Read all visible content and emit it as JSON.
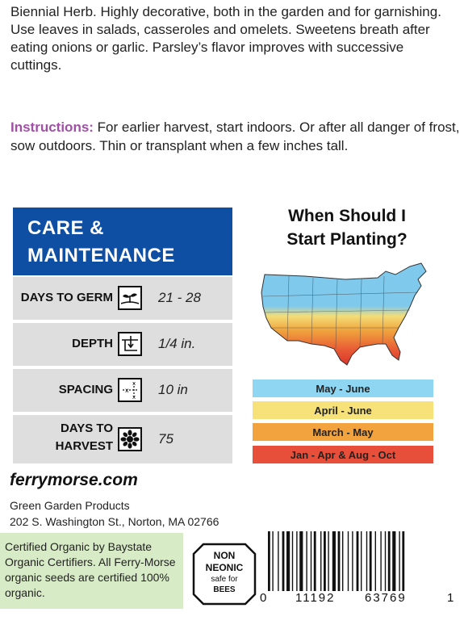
{
  "description": "Biennial Herb. Highly decorative, both in the garden and for garnishing. Use leaves in salads, casseroles and omelets. Sweetens breath after eating onions or garlic. Parsley’s flavor improves with successive cuttings.",
  "instructions": {
    "label": "Instructions:",
    "text": " For earlier harvest, start indoors. Or after all danger of frost, sow outdoors. Thin or transplant when a few inches tall."
  },
  "care": {
    "title_line1": "CARE &",
    "title_line2": "MAINTENANCE",
    "rows": [
      {
        "name": "DAYS TO GERM",
        "value": "21 - 28",
        "icon": "seedling-icon"
      },
      {
        "name": "DEPTH",
        "value": "1/4 in.",
        "icon": "depth-icon"
      },
      {
        "name": "SPACING",
        "value": "10 in",
        "icon": "spacing-icon"
      },
      {
        "name_line1": "DAYS TO",
        "name_line2": "HARVEST",
        "value": "75",
        "icon": "flower-icon"
      }
    ]
  },
  "planting": {
    "title_line1": "When Should I",
    "title_line2": "Start Planting?",
    "bands": [
      {
        "label": "May - June",
        "color": "#8fd6f2"
      },
      {
        "label": "April - June",
        "color": "#f7e27a"
      },
      {
        "label": "March - May",
        "color": "#f2a33e"
      },
      {
        "label": "Jan - Apr & Aug - Oct",
        "color": "#e84f3a"
      }
    ]
  },
  "footer": {
    "website": "ferrymorse.com",
    "company": "Green Garden Products",
    "address": "202 S. Washington St., Norton, MA 02766",
    "certification": "Certified Organic by Baystate Organic Certifiers. All Ferry-Morse organic seeds are certified 100% organic.",
    "badge_line1": "NON",
    "badge_line2": "NEONIC",
    "badge_line3": "safe for",
    "badge_line4": "BEES",
    "barcode_left": "0",
    "barcode_group1": "11192",
    "barcode_group2": "63769",
    "barcode_right": "1"
  }
}
